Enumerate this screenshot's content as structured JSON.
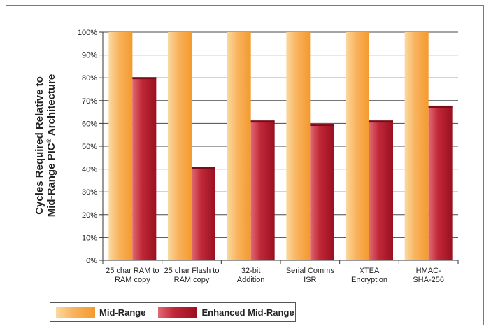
{
  "chart_data": {
    "type": "bar",
    "categories": [
      [
        "25 char RAM to",
        "RAM copy"
      ],
      [
        "25 char Flash to",
        "RAM copy"
      ],
      [
        "32-bit",
        "Addition"
      ],
      [
        "Serial Comms",
        "ISR"
      ],
      [
        "XTEA",
        "Encryption"
      ],
      [
        "HMAC-",
        "SHA-256"
      ]
    ],
    "series": [
      {
        "name": "Mid-Range",
        "values": [
          100,
          100,
          100,
          100,
          100,
          100
        ],
        "color": "#f7a84a"
      },
      {
        "name": "Enhanced Mid-Range",
        "values": [
          80,
          40.5,
          61,
          59.5,
          61,
          67.5
        ],
        "color": "#b31b2b"
      }
    ],
    "ylabel_line1": "Cycles Required Relative to",
    "ylabel_line2_pre": "Mid-Range PIC",
    "ylabel_sup": "®",
    "ylabel_line2_post": " Architecture",
    "ylim": [
      0,
      100
    ],
    "yticks": [
      0,
      10,
      20,
      30,
      40,
      50,
      60,
      70,
      80,
      90,
      100
    ],
    "ytick_suffix": "%",
    "grid": true,
    "legend_position": "bottom-left"
  }
}
